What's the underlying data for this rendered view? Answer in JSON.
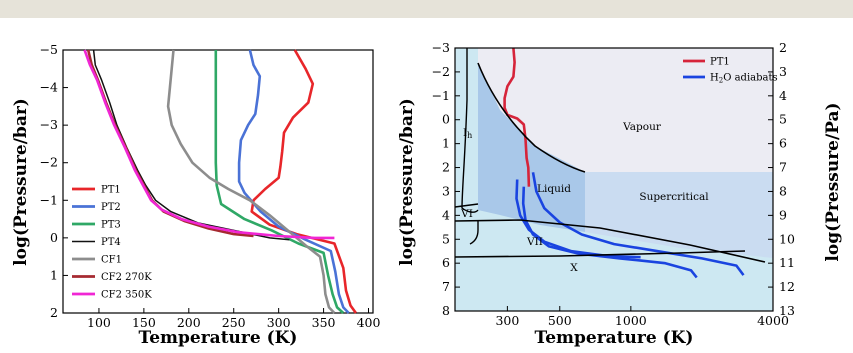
{
  "chart_data": [
    {
      "type": "line",
      "xlabel": "Temperature (K)",
      "ylabel": "log(Pressure/bar)",
      "xlim": [
        60,
        405
      ],
      "ylim": [
        -5,
        2
      ],
      "y_inverted": true,
      "xticks": [
        100,
        150,
        200,
        250,
        300,
        350,
        400
      ],
      "yticks": [
        -5,
        -4,
        -3,
        -2,
        -1,
        0,
        1,
        2
      ],
      "legend_position": "lower-left",
      "series": [
        {
          "name": "PT1",
          "color": "#e8262a",
          "points": [
            [
              318,
              -5
            ],
            [
              330,
              -4.5
            ],
            [
              338,
              -4.1
            ],
            [
              333,
              -3.6
            ],
            [
              316,
              -3.2
            ],
            [
              306,
              -2.8
            ],
            [
              304,
              -2.3
            ],
            [
              302,
              -1.9
            ],
            [
              300,
              -1.6
            ],
            [
              285,
              -1.3
            ],
            [
              272,
              -1.0
            ],
            [
              270,
              -0.7
            ],
            [
              290,
              -0.35
            ],
            [
              320,
              -0.1
            ],
            [
              362,
              0.15
            ],
            [
              372,
              0.8
            ],
            [
              375,
              1.4
            ],
            [
              380,
              1.8
            ],
            [
              386,
              2.0
            ]
          ]
        },
        {
          "name": "PT2",
          "color": "#4a72d6",
          "points": [
            [
              268,
              -5
            ],
            [
              272,
              -4.6
            ],
            [
              279,
              -4.3
            ],
            [
              277,
              -3.8
            ],
            [
              274,
              -3.3
            ],
            [
              266,
              -3.0
            ],
            [
              258,
              -2.6
            ],
            [
              256,
              -2.0
            ],
            [
              256,
              -1.5
            ],
            [
              262,
              -1.2
            ],
            [
              280,
              -0.7
            ],
            [
              300,
              -0.3
            ],
            [
              330,
              0.05
            ],
            [
              358,
              0.35
            ],
            [
              363,
              0.9
            ],
            [
              367,
              1.5
            ],
            [
              372,
              1.85
            ],
            [
              378,
              2.0
            ]
          ]
        },
        {
          "name": "PT3",
          "color": "#2fa866",
          "points": [
            [
              230,
              -5
            ],
            [
              230,
              -4.0
            ],
            [
              230,
              -3.0
            ],
            [
              230,
              -2.0
            ],
            [
              231,
              -1.4
            ],
            [
              236,
              -0.9
            ],
            [
              262,
              -0.5
            ],
            [
              292,
              -0.2
            ],
            [
              322,
              0.15
            ],
            [
              350,
              0.4
            ],
            [
              355,
              1.0
            ],
            [
              360,
              1.5
            ],
            [
              365,
              1.85
            ],
            [
              372,
              2.0
            ]
          ]
        },
        {
          "name": "PT4",
          "color": "#111111",
          "points": [
            [
              94,
              -5
            ],
            [
              96,
              -4.6
            ],
            [
              103,
              -4.2
            ],
            [
              112,
              -3.6
            ],
            [
              120,
              -3.0
            ],
            [
              131,
              -2.4
            ],
            [
              143,
              -1.8
            ],
            [
              152,
              -1.4
            ],
            [
              163,
              -1.0
            ],
            [
              180,
              -0.7
            ],
            [
              210,
              -0.4
            ],
            [
              250,
              -0.2
            ],
            [
              290,
              0
            ],
            [
              312,
              0.05
            ]
          ]
        },
        {
          "name": "CF1",
          "color": "#8d8d8d",
          "points": [
            [
              183,
              -5
            ],
            [
              181,
              -4.5
            ],
            [
              179,
              -4.0
            ],
            [
              177,
              -3.5
            ],
            [
              181,
              -3.0
            ],
            [
              191,
              -2.5
            ],
            [
              204,
              -2.0
            ],
            [
              223,
              -1.6
            ],
            [
              244,
              -1.3
            ],
            [
              268,
              -1.0
            ],
            [
              290,
              -0.6
            ],
            [
              310,
              -0.2
            ],
            [
              330,
              0.2
            ],
            [
              346,
              0.5
            ],
            [
              350,
              1.0
            ],
            [
              352,
              1.5
            ],
            [
              356,
              1.85
            ],
            [
              362,
              2.0
            ]
          ]
        },
        {
          "name": "CF2 270K",
          "color": "#a62a31",
          "points": [
            [
              88,
              -5
            ],
            [
              92,
              -4.6
            ],
            [
              99,
              -4.2
            ],
            [
              108,
              -3.6
            ],
            [
              118,
              -3.0
            ],
            [
              130,
              -2.4
            ],
            [
              141,
              -1.8
            ],
            [
              150,
              -1.4
            ],
            [
              159,
              -1.0
            ],
            [
              172,
              -0.7
            ],
            [
              195,
              -0.45
            ],
            [
              222,
              -0.25
            ],
            [
              250,
              -0.1
            ],
            [
              272,
              -0.05
            ]
          ]
        },
        {
          "name": "CF2 350K",
          "color": "#f026d4",
          "points": [
            [
              84,
              -5
            ],
            [
              90,
              -4.6
            ],
            [
              98,
              -4.2
            ],
            [
              107,
              -3.6
            ],
            [
              117,
              -3.0
            ],
            [
              129,
              -2.4
            ],
            [
              140,
              -1.8
            ],
            [
              149,
              -1.4
            ],
            [
              158,
              -1.0
            ],
            [
              170,
              -0.75
            ],
            [
              192,
              -0.5
            ],
            [
              222,
              -0.3
            ],
            [
              255,
              -0.15
            ],
            [
              300,
              -0.05
            ],
            [
              340,
              0
            ],
            [
              362,
              0
            ]
          ]
        }
      ]
    },
    {
      "type": "line",
      "xlabel": "Temperature (K)",
      "ylabel": "log(Pressure/bar)",
      "y2label": "log(Pressure/Pa)",
      "x_scale": "log",
      "xlim": [
        180,
        4000
      ],
      "ylim": [
        -3,
        8
      ],
      "y2lim": [
        2,
        13
      ],
      "y_inverted": true,
      "xticks": [
        300,
        500,
        1000,
        4000
      ],
      "yticks": [
        -3,
        -2,
        -1,
        0,
        1,
        2,
        3,
        4,
        5,
        6,
        7,
        8
      ],
      "y2ticks": [
        2,
        3,
        4,
        5,
        6,
        7,
        8,
        9,
        10,
        11,
        12,
        13
      ],
      "legend_position": "top-right",
      "regions": [
        "Vapour",
        "Liquid",
        "Supercritical",
        "VI",
        "VII",
        "X"
      ],
      "series": [
        {
          "name": "PT1",
          "color": "#d6243a",
          "points": [
            [
              318,
              -3
            ],
            [
              322,
              -2.4
            ],
            [
              318,
              -1.8
            ],
            [
              300,
              -1.4
            ],
            [
              292,
              -0.9
            ],
            [
              292,
              -0.5
            ],
            [
              300,
              -0.2
            ],
            [
              330,
              -0.05
            ],
            [
              352,
              0.2
            ],
            [
              358,
              0.8
            ],
            [
              362,
              1.6
            ],
            [
              368,
              2.0
            ],
            [
              370,
              2.8
            ]
          ]
        },
        {
          "name": "H2O adiabats",
          "color": "#1a44e0",
          "points": [
            [
              352,
              2.8
            ],
            [
              350,
              3.5
            ],
            [
              358,
              4.2
            ],
            [
              385,
              4.8
            ],
            [
              450,
              5.3
            ],
            [
              600,
              5.6
            ],
            [
              900,
              5.8
            ],
            [
              1400,
              6.0
            ],
            [
              1800,
              6.3
            ],
            [
              1900,
              6.6
            ]
          ]
        },
        {
          "name": "",
          "color": "#1a44e0",
          "points": [
            [
              385,
              2.2
            ],
            [
              398,
              3.0
            ],
            [
              430,
              3.7
            ],
            [
              500,
              4.3
            ],
            [
              620,
              4.8
            ],
            [
              850,
              5.2
            ],
            [
              1300,
              5.5
            ],
            [
              2000,
              5.8
            ],
            [
              2800,
              6.1
            ],
            [
              3000,
              6.5
            ]
          ]
        },
        {
          "name": "",
          "color": "#1a44e0",
          "points": [
            [
              330,
              2.5
            ],
            [
              328,
              3.3
            ],
            [
              340,
              4.0
            ],
            [
              370,
              4.6
            ],
            [
              430,
              5.1
            ],
            [
              560,
              5.5
            ],
            [
              800,
              5.7
            ],
            [
              1100,
              5.75
            ]
          ]
        }
      ]
    }
  ]
}
